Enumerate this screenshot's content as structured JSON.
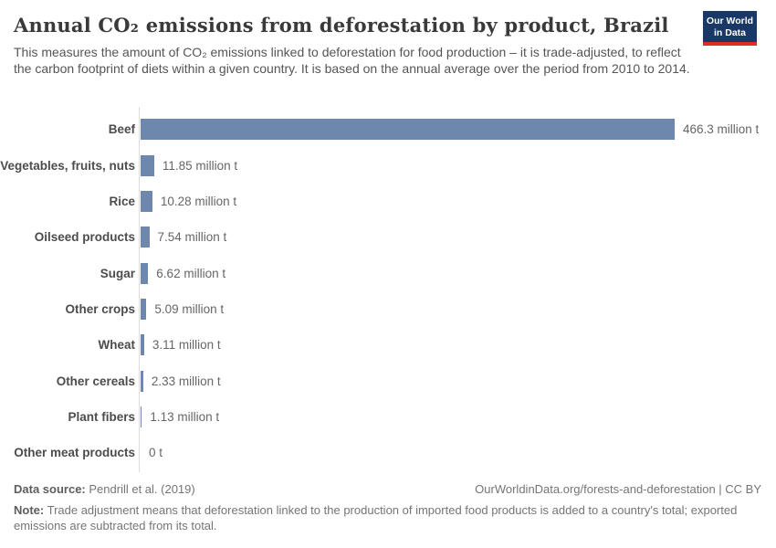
{
  "header": {
    "title": "Annual CO₂ emissions from deforestation by product, Brazil",
    "subtitle": "This measures the amount of CO₂ emissions linked to deforestation for food production – it is trade-adjusted, to reflect the carbon footprint of diets within a given country. It is based on the annual average over the period from 2010 to 2014.",
    "logo": {
      "line1": "Our World",
      "line2": "in Data",
      "bg_color": "#1a3866",
      "accent_color": "#dc2c2c"
    }
  },
  "chart_data": {
    "type": "bar",
    "orientation": "horizontal",
    "title": "Annual CO₂ emissions from deforestation by product, Brazil",
    "unit": "million t",
    "xlim": [
      0,
      466.3
    ],
    "grid": false,
    "legend": false,
    "bar_color": "#6e87ad",
    "categories": [
      "Beef",
      "Vegetables, fruits, nuts",
      "Rice",
      "Oilseed products",
      "Sugar",
      "Other crops",
      "Wheat",
      "Other cereals",
      "Plant fibers",
      "Other meat products"
    ],
    "values": [
      466.3,
      11.85,
      10.28,
      7.54,
      6.62,
      5.09,
      3.11,
      2.33,
      1.13,
      0
    ],
    "value_labels": [
      "466.3 million t",
      "11.85 million t",
      "10.28 million t",
      "7.54 million t",
      "6.62 million t",
      "5.09 million t",
      "3.11 million t",
      "2.33 million t",
      "1.13 million t",
      "0 t"
    ]
  },
  "footer": {
    "data_source_label": "Data source:",
    "data_source_value": "Pendrill et al. (2019)",
    "citation": "OurWorldinData.org/forests-and-deforestation | CC BY",
    "note_label": "Note:",
    "note_text": "Trade adjustment means that deforestation linked to the production of imported food products is added to a country's total; exported emissions are subtracted from its total."
  }
}
